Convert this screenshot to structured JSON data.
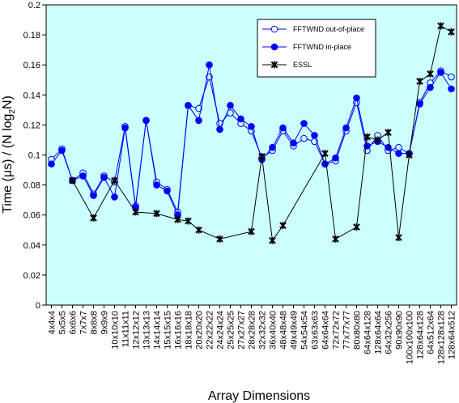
{
  "chart_data": {
    "type": "line",
    "xlabel": "Array Dimensions",
    "ylabel_main": "Time (μs) / (N log",
    "ylabel_sub": "2",
    "ylabel_tail": "N)",
    "ylim": [
      0,
      0.2
    ],
    "yticks": [
      "0",
      "0.02",
      "0.04",
      "0.06",
      "0.08",
      "0.1",
      "0.12",
      "0.14",
      "0.16",
      "0.18",
      "0.2"
    ],
    "grid": false,
    "legend_position": "top-right",
    "colors": {
      "plot_background": "#ccffff",
      "fftwnd": "#0000ff",
      "essl": "#000000"
    },
    "categories": [
      "4x4x4",
      "5x5x5",
      "6x6x6",
      "7x7x7",
      "8x8x8",
      "9x9x9",
      "10x10x10",
      "11x11x11",
      "12x12x12",
      "13x13x13",
      "14x14x14",
      "15x15x15",
      "16x16x16",
      "18x18x18",
      "20x20x20",
      "22x22x22",
      "24x24x24",
      "25x25x25",
      "27x27x27",
      "28x28x28",
      "32x32x32",
      "36x40x40",
      "48x48x48",
      "49x49x49",
      "54x54x54",
      "63x63x63",
      "64x64x64",
      "72x72x72",
      "77x77x77",
      "80x80x80",
      "64x64x128",
      "128x64x64",
      "64x32x256",
      "90x90x90",
      "100x100x100",
      "128x64x128",
      "64x512x64",
      "128x128x128",
      "128x64x512"
    ],
    "series": [
      {
        "name": "FFTWND out-of-place",
        "marker": "open-circle",
        "values": [
          0.097,
          0.104,
          0.083,
          0.088,
          0.074,
          0.086,
          0.082,
          0.119,
          0.066,
          0.123,
          0.082,
          0.077,
          0.062,
          0.133,
          0.131,
          0.152,
          0.121,
          0.128,
          0.121,
          0.116,
          0.098,
          0.103,
          0.116,
          0.106,
          0.111,
          0.109,
          0.094,
          0.096,
          0.116,
          0.135,
          0.103,
          0.113,
          0.103,
          0.105,
          0.101,
          0.135,
          0.148,
          0.156,
          0.152
        ]
      },
      {
        "name": "FFTWND in-place",
        "marker": "filled-circle",
        "values": [
          0.094,
          0.103,
          0.083,
          0.086,
          0.073,
          0.085,
          0.072,
          0.118,
          0.065,
          0.123,
          0.08,
          0.076,
          0.06,
          0.133,
          0.123,
          0.16,
          0.117,
          0.133,
          0.124,
          0.119,
          0.097,
          0.105,
          0.118,
          0.108,
          0.121,
          0.113,
          0.094,
          0.098,
          0.118,
          0.138,
          0.106,
          0.109,
          0.105,
          0.101,
          0.101,
          0.134,
          0.145,
          0.155,
          0.144
        ]
      },
      {
        "name": "ESSL",
        "marker": "star",
        "points": [
          {
            "i": 2,
            "v": 0.083
          },
          {
            "i": 4,
            "v": 0.058
          },
          {
            "i": 6,
            "v": 0.083
          },
          {
            "i": 8,
            "v": 0.062
          },
          {
            "i": 10,
            "v": 0.061
          },
          {
            "i": 12,
            "v": 0.057
          },
          {
            "i": 13,
            "v": 0.056
          },
          {
            "i": 14,
            "v": 0.05
          },
          {
            "i": 16,
            "v": 0.044
          },
          {
            "i": 19,
            "v": 0.049
          },
          {
            "i": 20,
            "v": 0.099
          },
          {
            "i": 21,
            "v": 0.043
          },
          {
            "i": 22,
            "v": 0.053
          },
          {
            "i": 26,
            "v": 0.101
          },
          {
            "i": 27,
            "v": 0.044
          },
          {
            "i": 29,
            "v": 0.052
          },
          {
            "i": 30,
            "v": 0.112
          },
          {
            "i": 31,
            "v": 0.11
          },
          {
            "i": 32,
            "v": 0.115
          },
          {
            "i": 33,
            "v": 0.045
          },
          {
            "i": 34,
            "v": 0.1
          },
          {
            "i": 35,
            "v": 0.149
          },
          {
            "i": 36,
            "v": 0.154
          },
          {
            "i": 37,
            "v": 0.186
          },
          {
            "i": 38,
            "v": 0.182
          }
        ]
      }
    ]
  }
}
